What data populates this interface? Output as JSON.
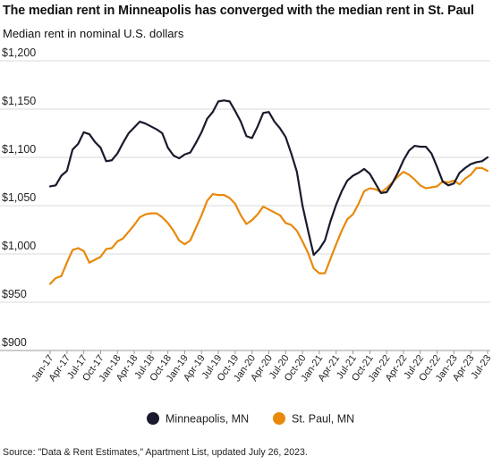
{
  "title": "The median rent in Minneapolis has converged with the median rent in St. Paul",
  "subtitle": "Median rent in nominal U.S. dollars",
  "source": "Source: \"Data & Rent Estimates,\" Apartment List, updated July 26, 2023.",
  "colors": {
    "minneapolis": "#1a1a2e",
    "st_paul": "#e8890c",
    "grid": "#d9d9d9"
  },
  "chart_data": {
    "type": "line",
    "title": "The median rent in Minneapolis has converged with the median rent in St. Paul",
    "subtitle": "Median rent in nominal U.S. dollars",
    "xlabel": "",
    "ylabel": "",
    "ylim": [
      900,
      1200
    ],
    "yticks": [
      900,
      950,
      1000,
      1050,
      1100,
      1150,
      1200
    ],
    "ytick_labels": [
      "$900",
      "$950",
      "$1,000",
      "$1,050",
      "$1,100",
      "$1,150",
      "$1,200"
    ],
    "grid": true,
    "legend_position": "bottom-center",
    "xtick_labels": [
      "Jan-17",
      "Apr-17",
      "Jul-17",
      "Oct-17",
      "Jan-18",
      "Apr-18",
      "Jul-18",
      "Oct-18",
      "Jan-19",
      "Apr-19",
      "Jul-19",
      "Oct-19",
      "Jan-20",
      "Apr-20",
      "Jul-20",
      "Oct-20",
      "Jan-21",
      "Apr-21",
      "Jul-21",
      "Oct-21",
      "Jan-22",
      "Apr-22",
      "Jul-22",
      "Oct-22",
      "Jan-23",
      "Apr-23",
      "Jul-23"
    ],
    "x": [
      "Jan-17",
      "Feb-17",
      "Mar-17",
      "Apr-17",
      "May-17",
      "Jun-17",
      "Jul-17",
      "Aug-17",
      "Sep-17",
      "Oct-17",
      "Nov-17",
      "Dec-17",
      "Jan-18",
      "Feb-18",
      "Mar-18",
      "Apr-18",
      "May-18",
      "Jun-18",
      "Jul-18",
      "Aug-18",
      "Sep-18",
      "Oct-18",
      "Nov-18",
      "Dec-18",
      "Jan-19",
      "Feb-19",
      "Mar-19",
      "Apr-19",
      "May-19",
      "Jun-19",
      "Jul-19",
      "Aug-19",
      "Sep-19",
      "Oct-19",
      "Nov-19",
      "Dec-19",
      "Jan-20",
      "Feb-20",
      "Mar-20",
      "Apr-20",
      "May-20",
      "Jun-20",
      "Jul-20",
      "Aug-20",
      "Sep-20",
      "Oct-20",
      "Nov-20",
      "Dec-20",
      "Jan-21",
      "Feb-21",
      "Mar-21",
      "Apr-21",
      "May-21",
      "Jun-21",
      "Jul-21",
      "Aug-21",
      "Sep-21",
      "Oct-21",
      "Nov-21",
      "Dec-21",
      "Jan-22",
      "Feb-22",
      "Mar-22",
      "Apr-22",
      "May-22",
      "Jun-22",
      "Jul-22",
      "Aug-22",
      "Sep-22",
      "Oct-22",
      "Nov-22",
      "Dec-22",
      "Jan-23",
      "Feb-23",
      "Mar-23",
      "Apr-23",
      "May-23",
      "Jun-23",
      "Jul-23"
    ],
    "series": [
      {
        "name": "Minneapolis, MN",
        "color": "#1a1a2e",
        "values": [
          1070,
          1071,
          1081,
          1086,
          1108,
          1114,
          1126,
          1124,
          1116,
          1110,
          1096,
          1097,
          1104,
          1115,
          1125,
          1131,
          1137,
          1135,
          1132,
          1129,
          1125,
          1110,
          1102,
          1099,
          1103,
          1105,
          1115,
          1126,
          1140,
          1147,
          1158,
          1159,
          1158,
          1148,
          1137,
          1122,
          1120,
          1132,
          1146,
          1147,
          1137,
          1130,
          1121,
          1104,
          1085,
          1050,
          1024,
          999,
          1005,
          1014,
          1034,
          1051,
          1065,
          1076,
          1081,
          1084,
          1088,
          1083,
          1073,
          1063,
          1064,
          1073,
          1084,
          1097,
          1107,
          1112,
          1111,
          1111,
          1104,
          1090,
          1075,
          1071,
          1073,
          1084,
          1089,
          1093,
          1095,
          1096,
          1100
        ]
      },
      {
        "name": "St. Paul, MN",
        "color": "#e8890c",
        "values": [
          969,
          975,
          977,
          991,
          1004,
          1006,
          1003,
          991,
          994,
          997,
          1005,
          1006,
          1013,
          1016,
          1023,
          1030,
          1038,
          1041,
          1042,
          1042,
          1038,
          1032,
          1024,
          1014,
          1010,
          1014,
          1027,
          1040,
          1055,
          1062,
          1061,
          1061,
          1058,
          1052,
          1040,
          1031,
          1035,
          1041,
          1049,
          1046,
          1043,
          1040,
          1032,
          1030,
          1024,
          1013,
          1001,
          985,
          980,
          980,
          995,
          1010,
          1024,
          1036,
          1041,
          1052,
          1065,
          1068,
          1067,
          1064,
          1068,
          1074,
          1080,
          1085,
          1082,
          1077,
          1071,
          1068,
          1069,
          1070,
          1075,
          1074,
          1076,
          1072,
          1078,
          1082,
          1089,
          1089,
          1086
        ]
      }
    ]
  }
}
